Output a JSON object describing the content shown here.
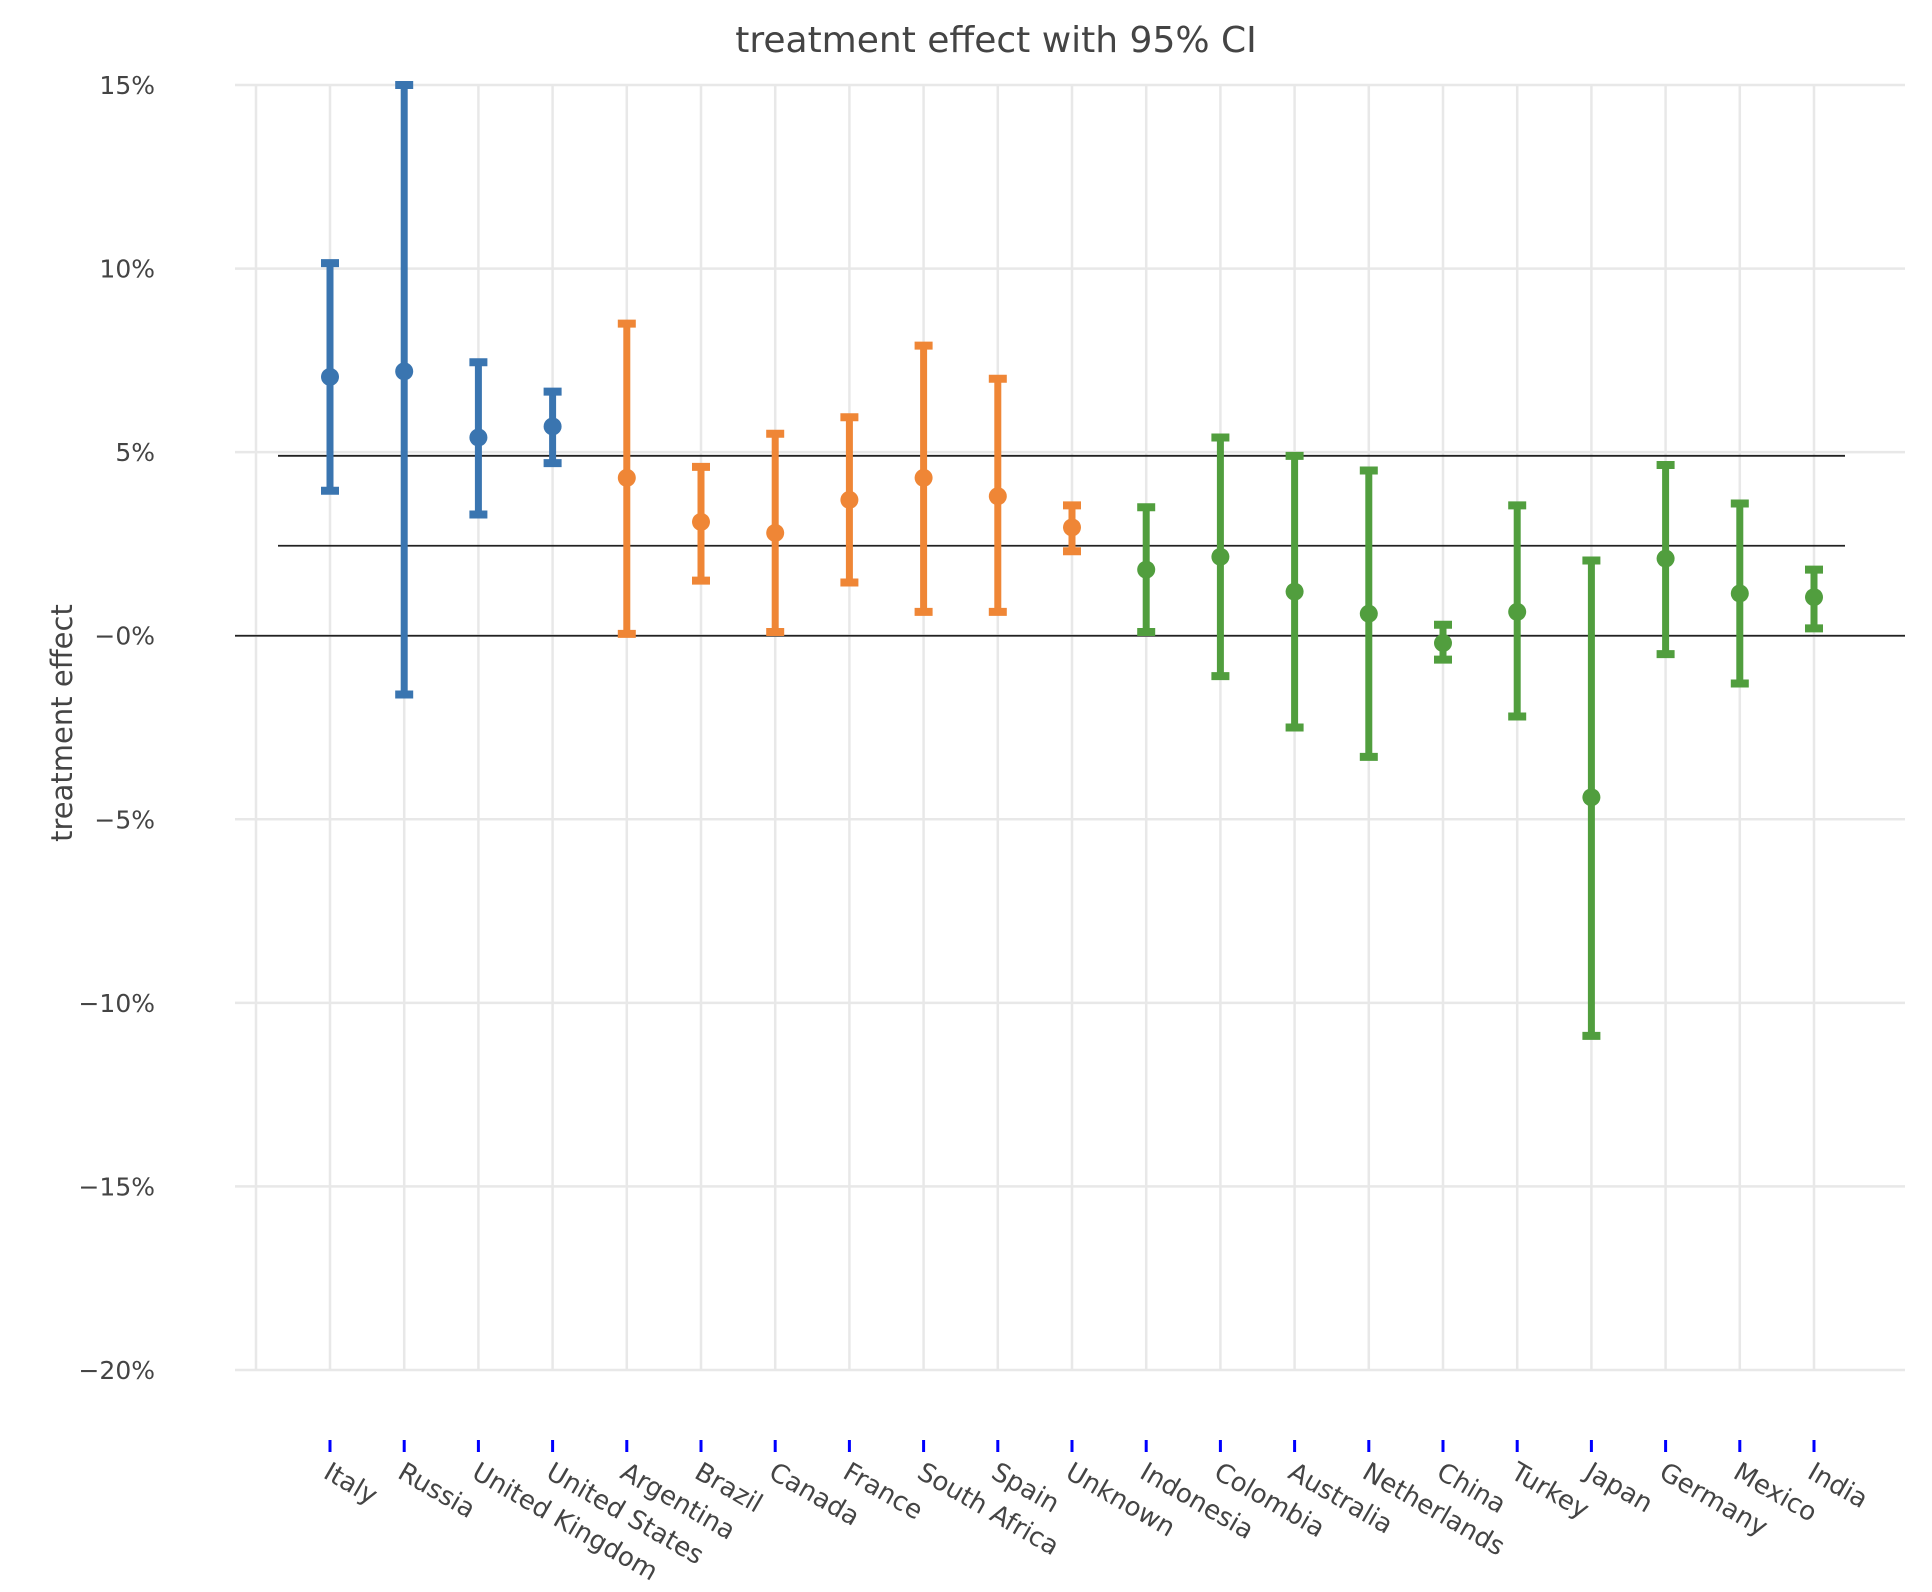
{
  "chart_data": {
    "type": "errorbar",
    "title": "treatment effect with 95% CI",
    "xlabel": "",
    "ylabel": "treatment effect",
    "ylim": [
      -0.2,
      0.15
    ],
    "yticks": [
      0.15,
      0.1,
      0.05,
      0.0,
      -0.05,
      -0.1,
      -0.15,
      -0.2
    ],
    "ytick_labels": [
      "15%",
      "10%",
      "5%",
      "−0%",
      "−5%",
      "−10%",
      "−15%",
      "−20%"
    ],
    "grid": true,
    "reference_lines": [
      0.0,
      0.0245,
      0.049
    ],
    "colors": {
      "group1": "#3a75b0",
      "group2": "#ef8636",
      "group3": "#519e3e",
      "ref_line": "#222222",
      "grid": "#e8e8e8",
      "tick_marker": "#0000ff"
    },
    "points": [
      {
        "category": "Italy",
        "group": "group1",
        "estimate": 0.0705,
        "lower": 0.0395,
        "upper": 0.1015
      },
      {
        "category": "Russia",
        "group": "group1",
        "estimate": 0.072,
        "lower": -0.016,
        "upper": 0.15
      },
      {
        "category": "United Kingdom",
        "group": "group1",
        "estimate": 0.054,
        "lower": 0.033,
        "upper": 0.0745
      },
      {
        "category": "United States",
        "group": "group1",
        "estimate": 0.057,
        "lower": 0.047,
        "upper": 0.0665
      },
      {
        "category": "Argentina",
        "group": "group2",
        "estimate": 0.043,
        "lower": 0.0005,
        "upper": 0.085
      },
      {
        "category": "Brazil",
        "group": "group2",
        "estimate": 0.031,
        "lower": 0.015,
        "upper": 0.046
      },
      {
        "category": "Canada",
        "group": "group2",
        "estimate": 0.028,
        "lower": 0.001,
        "upper": 0.055
      },
      {
        "category": "France",
        "group": "group2",
        "estimate": 0.037,
        "lower": 0.0145,
        "upper": 0.0595
      },
      {
        "category": "South Africa",
        "group": "group2",
        "estimate": 0.043,
        "lower": 0.0065,
        "upper": 0.079
      },
      {
        "category": "Spain",
        "group": "group2",
        "estimate": 0.038,
        "lower": 0.0065,
        "upper": 0.07
      },
      {
        "category": "Unknown",
        "group": "group2",
        "estimate": 0.0295,
        "lower": 0.023,
        "upper": 0.0355
      },
      {
        "category": "Indonesia",
        "group": "group3",
        "estimate": 0.018,
        "lower": 0.001,
        "upper": 0.035
      },
      {
        "category": "Colombia",
        "group": "group3",
        "estimate": 0.0215,
        "lower": -0.011,
        "upper": 0.054
      },
      {
        "category": "Australia",
        "group": "group3",
        "estimate": 0.012,
        "lower": -0.025,
        "upper": 0.049
      },
      {
        "category": "Netherlands",
        "group": "group3",
        "estimate": 0.006,
        "lower": -0.033,
        "upper": 0.045
      },
      {
        "category": "China",
        "group": "group3",
        "estimate": -0.002,
        "lower": -0.0065,
        "upper": 0.003
      },
      {
        "category": "Turkey",
        "group": "group3",
        "estimate": 0.0065,
        "lower": -0.022,
        "upper": 0.0355
      },
      {
        "category": "Japan",
        "group": "group3",
        "estimate": -0.044,
        "lower": -0.109,
        "upper": 0.0205
      },
      {
        "category": "Germany",
        "group": "group3",
        "estimate": 0.021,
        "lower": -0.005,
        "upper": 0.0465
      },
      {
        "category": "Mexico",
        "group": "group3",
        "estimate": 0.0115,
        "lower": -0.013,
        "upper": 0.036
      },
      {
        "category": "India",
        "group": "group3",
        "estimate": 0.0105,
        "lower": 0.002,
        "upper": 0.018
      }
    ]
  }
}
